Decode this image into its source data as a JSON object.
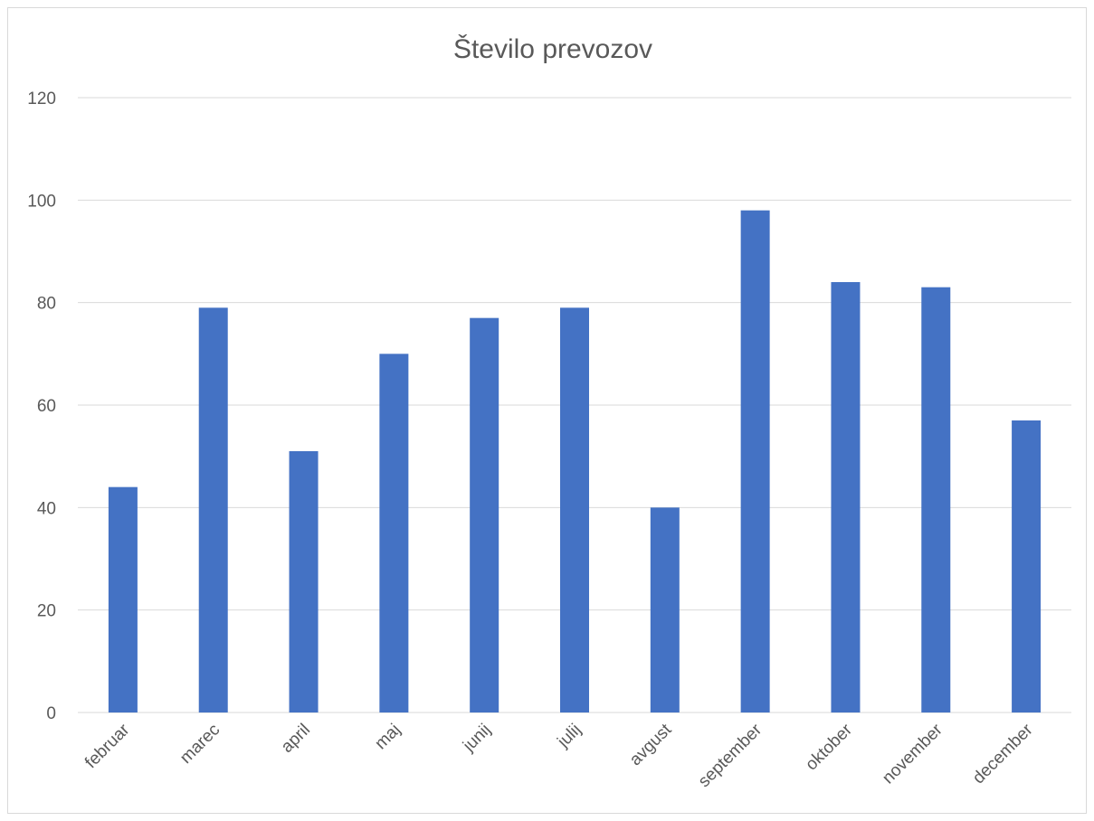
{
  "chart_data": {
    "type": "bar",
    "title": "Število prevozov",
    "xlabel": "",
    "ylabel": "",
    "categories": [
      "februar",
      "marec",
      "april",
      "maj",
      "junij",
      "julij",
      "avgust",
      "september",
      "oktober",
      "november",
      "december"
    ],
    "values": [
      44,
      79,
      51,
      70,
      77,
      79,
      40,
      98,
      84,
      83,
      57
    ],
    "ylim": [
      0,
      120
    ],
    "yticks": [
      0,
      20,
      40,
      60,
      80,
      100,
      120
    ],
    "grid": true,
    "legend": "none",
    "bar_color": "#4472C4"
  }
}
